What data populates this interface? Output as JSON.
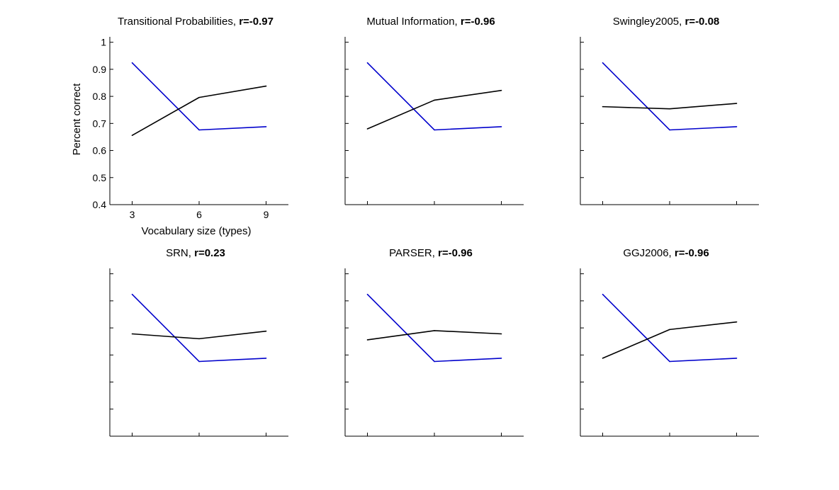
{
  "chart_data": [
    {
      "type": "line",
      "title": "Transitional Probabilities, ",
      "r_label": "r=-0.97",
      "xlabel": "Vocabulary size (types)",
      "ylabel": "Percent correct",
      "x": [
        3,
        6,
        9
      ],
      "xticks": [
        3,
        6,
        9
      ],
      "yticks": [
        0.4,
        0.5,
        0.6,
        0.7,
        0.8,
        0.9,
        1
      ],
      "show_tick_labels": true,
      "xlim": [
        2,
        10
      ],
      "ylim": [
        0.4,
        1.02
      ],
      "series": [
        {
          "values": [
            0.924,
            0.676,
            0.688
          ],
          "color": "#0000cc"
        },
        {
          "values": [
            0.656,
            0.796,
            0.838
          ],
          "color": "#000000"
        }
      ]
    },
    {
      "type": "line",
      "title": "Mutual Information, ",
      "r_label": "r=-0.96",
      "x": [
        3,
        6,
        9
      ],
      "xticks": [
        3,
        6,
        9
      ],
      "yticks": [
        0.4,
        0.5,
        0.6,
        0.7,
        0.8,
        0.9,
        1
      ],
      "show_tick_labels": false,
      "xlim": [
        2,
        10
      ],
      "ylim": [
        0.4,
        1.02
      ],
      "series": [
        {
          "values": [
            0.924,
            0.676,
            0.688
          ],
          "color": "#0000cc"
        },
        {
          "values": [
            0.68,
            0.786,
            0.822
          ],
          "color": "#000000"
        }
      ]
    },
    {
      "type": "line",
      "title": "Swingley2005, ",
      "r_label": "r=-0.08",
      "x": [
        3,
        6,
        9
      ],
      "xticks": [
        3,
        6,
        9
      ],
      "yticks": [
        0.4,
        0.5,
        0.6,
        0.7,
        0.8,
        0.9,
        1
      ],
      "show_tick_labels": false,
      "xlim": [
        2,
        10
      ],
      "ylim": [
        0.4,
        1.02
      ],
      "series": [
        {
          "values": [
            0.924,
            0.676,
            0.688
          ],
          "color": "#0000cc"
        },
        {
          "values": [
            0.762,
            0.754,
            0.774
          ],
          "color": "#000000"
        }
      ]
    },
    {
      "type": "line",
      "title": "SRN, ",
      "r_label": "r=0.23",
      "x": [
        3,
        6,
        9
      ],
      "xticks": [
        3,
        6,
        9
      ],
      "yticks": [
        0.4,
        0.5,
        0.6,
        0.7,
        0.8,
        0.9,
        1
      ],
      "show_tick_labels": false,
      "xlim": [
        2,
        10
      ],
      "ylim": [
        0.4,
        1.02
      ],
      "series": [
        {
          "values": [
            0.924,
            0.676,
            0.688
          ],
          "color": "#0000cc"
        },
        {
          "values": [
            0.778,
            0.76,
            0.788
          ],
          "color": "#000000"
        }
      ]
    },
    {
      "type": "line",
      "title": "PARSER, ",
      "r_label": "r=-0.96",
      "x": [
        3,
        6,
        9
      ],
      "xticks": [
        3,
        6,
        9
      ],
      "yticks": [
        0.4,
        0.5,
        0.6,
        0.7,
        0.8,
        0.9,
        1
      ],
      "show_tick_labels": false,
      "xlim": [
        2,
        10
      ],
      "ylim": [
        0.4,
        1.02
      ],
      "series": [
        {
          "values": [
            0.924,
            0.676,
            0.688
          ],
          "color": "#0000cc"
        },
        {
          "values": [
            0.756,
            0.79,
            0.778
          ],
          "color": "#000000"
        }
      ]
    },
    {
      "type": "line",
      "title": "GGJ2006, ",
      "r_label": "r=-0.96",
      "x": [
        3,
        6,
        9
      ],
      "xticks": [
        3,
        6,
        9
      ],
      "yticks": [
        0.4,
        0.5,
        0.6,
        0.7,
        0.8,
        0.9,
        1
      ],
      "show_tick_labels": false,
      "xlim": [
        2,
        10
      ],
      "ylim": [
        0.4,
        1.02
      ],
      "series": [
        {
          "values": [
            0.924,
            0.676,
            0.688
          ],
          "color": "#0000cc"
        },
        {
          "values": [
            0.688,
            0.794,
            0.822
          ],
          "color": "#000000"
        }
      ]
    }
  ]
}
